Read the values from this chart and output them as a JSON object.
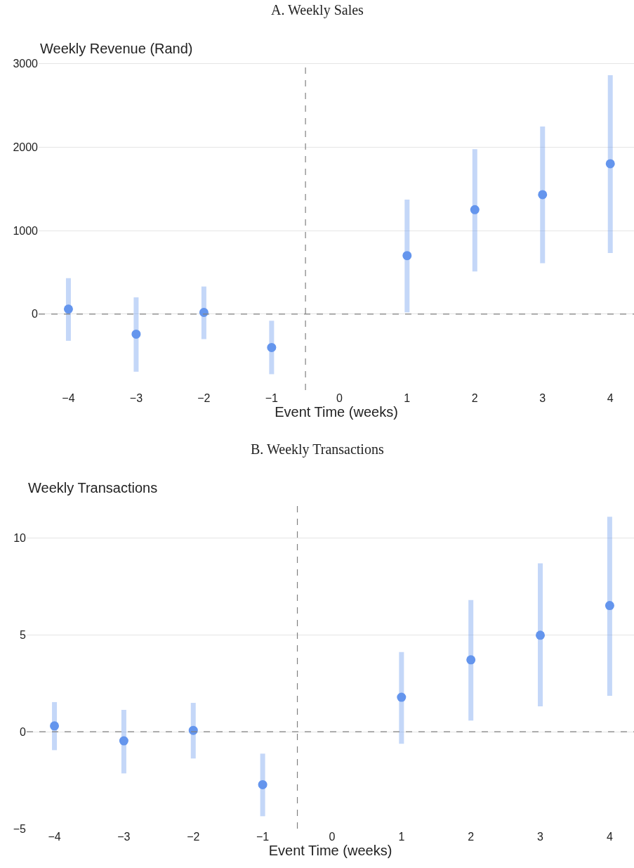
{
  "chart_data": [
    {
      "type": "scatter",
      "title": "A. Weekly Sales",
      "ylabel": "Weekly Revenue (Rand)",
      "xlabel": "Event Time (weeks)",
      "x": [
        -4,
        -3,
        -2,
        -1,
        0,
        1,
        2,
        3,
        4
      ],
      "series": [
        {
          "color": "#6495ed",
          "values": [
            60,
            -240,
            20,
            -400,
            null,
            700,
            1250,
            1430,
            1800
          ],
          "errors": [
            [
              -320,
              430
            ],
            [
              -690,
              200
            ],
            [
              -300,
              330
            ],
            [
              -720,
              -80
            ],
            null,
            [
              20,
              1370
            ],
            [
              510,
              1975
            ],
            [
              610,
              2245
            ],
            [
              730,
              2860
            ]
          ]
        }
      ],
      "xlim": [
        -4.44,
        4.35
      ],
      "ylim": [
        -910,
        3020
      ],
      "xticks": [
        {
          "value": -4,
          "label": "−4"
        },
        {
          "value": -3,
          "label": "−3"
        },
        {
          "value": -2,
          "label": "−2"
        },
        {
          "value": -1,
          "label": "−1"
        },
        0,
        1,
        2,
        3,
        4
      ],
      "yticks": [
        0,
        1000,
        2000,
        3000
      ],
      "ref_lines": [
        {
          "axis": "y",
          "value": 0,
          "color": "#808080",
          "line_style": "dashed"
        },
        {
          "axis": "x",
          "value": -0.5,
          "color": "#808080",
          "line_style": "dashed"
        }
      ],
      "grid": "y",
      "marker": "circle"
    },
    {
      "type": "scatter",
      "title": "B. Weekly Transactions",
      "ylabel": "Weekly Transactions",
      "xlabel": "Event Time (weeks)",
      "x": [
        -4,
        -3,
        -2,
        -1,
        0,
        1,
        2,
        3,
        4
      ],
      "series": [
        {
          "color": "#6495ed",
          "values": [
            0.3,
            -0.47,
            0.07,
            -2.73,
            null,
            1.78,
            3.71,
            4.98,
            6.51
          ],
          "errors": [
            [
              -0.95,
              1.53
            ],
            [
              -2.15,
              1.13
            ],
            [
              -1.38,
              1.49
            ],
            [
              -4.36,
              -1.13
            ],
            null,
            [
              -0.62,
              4.11
            ],
            [
              0.58,
              6.8
            ],
            [
              1.31,
              8.69
            ],
            [
              1.85,
              11.09
            ]
          ]
        }
      ],
      "xlim": [
        -4.4,
        4.35
      ],
      "ylim": [
        -5,
        11.9
      ],
      "xticks": [
        {
          "value": -4,
          "label": "−4"
        },
        {
          "value": -3,
          "label": "−3"
        },
        {
          "value": -2,
          "label": "−2"
        },
        {
          "value": -1,
          "label": "−1"
        },
        0,
        1,
        2,
        3,
        4
      ],
      "yticks": [
        {
          "value": -5,
          "label": "−5"
        },
        0,
        5,
        10
      ],
      "ref_lines": [
        {
          "axis": "y",
          "value": 0,
          "color": "#808080",
          "line_style": "dashed"
        },
        {
          "axis": "x",
          "value": -0.5,
          "color": "#808080",
          "line_style": "dashed"
        }
      ],
      "grid": "y",
      "marker": "circle"
    }
  ]
}
